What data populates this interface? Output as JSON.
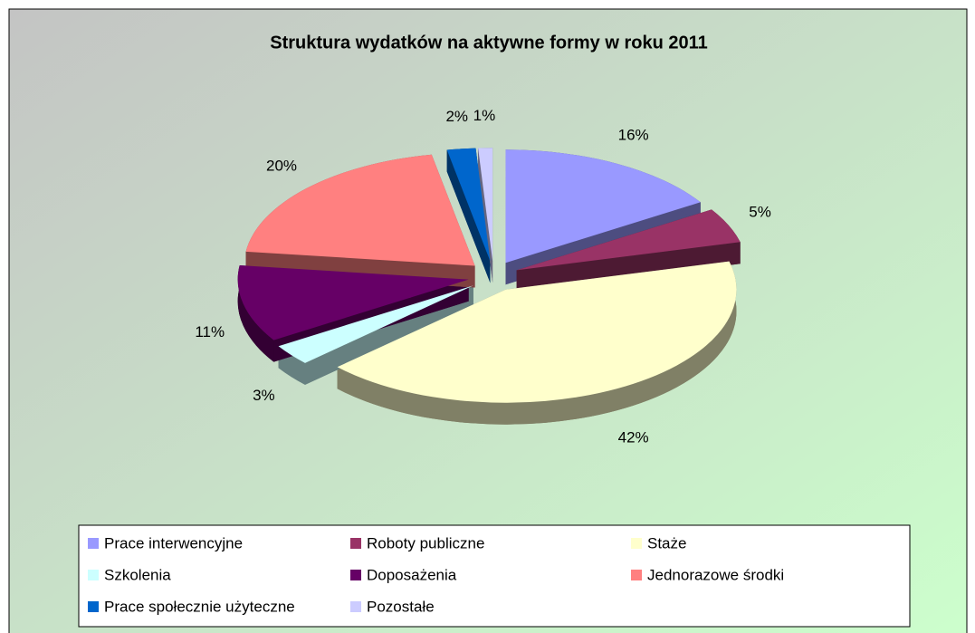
{
  "chart_data": {
    "type": "pie3d",
    "title": "Struktura wydatków na aktywne formy w roku 2011",
    "categories": [
      "Prace interwencyjne",
      "Roboty publiczne",
      "Staże",
      "Szkolenia",
      "Doposażenia",
      "Jednorazowe środki",
      "Prace społecznie użyteczne",
      "Pozostałe"
    ],
    "values": [
      16,
      5,
      42,
      3,
      11,
      20,
      2,
      1
    ],
    "value_labels": [
      "16%",
      "5%",
      "42%",
      "3%",
      "11%",
      "20%",
      "2%",
      "1%"
    ],
    "colors": [
      "#9999ff",
      "#993366",
      "#ffffcc",
      "#ccffff",
      "#660066",
      "#ff8080",
      "#0066cc",
      "#ccccff"
    ],
    "legend": "bottom"
  }
}
